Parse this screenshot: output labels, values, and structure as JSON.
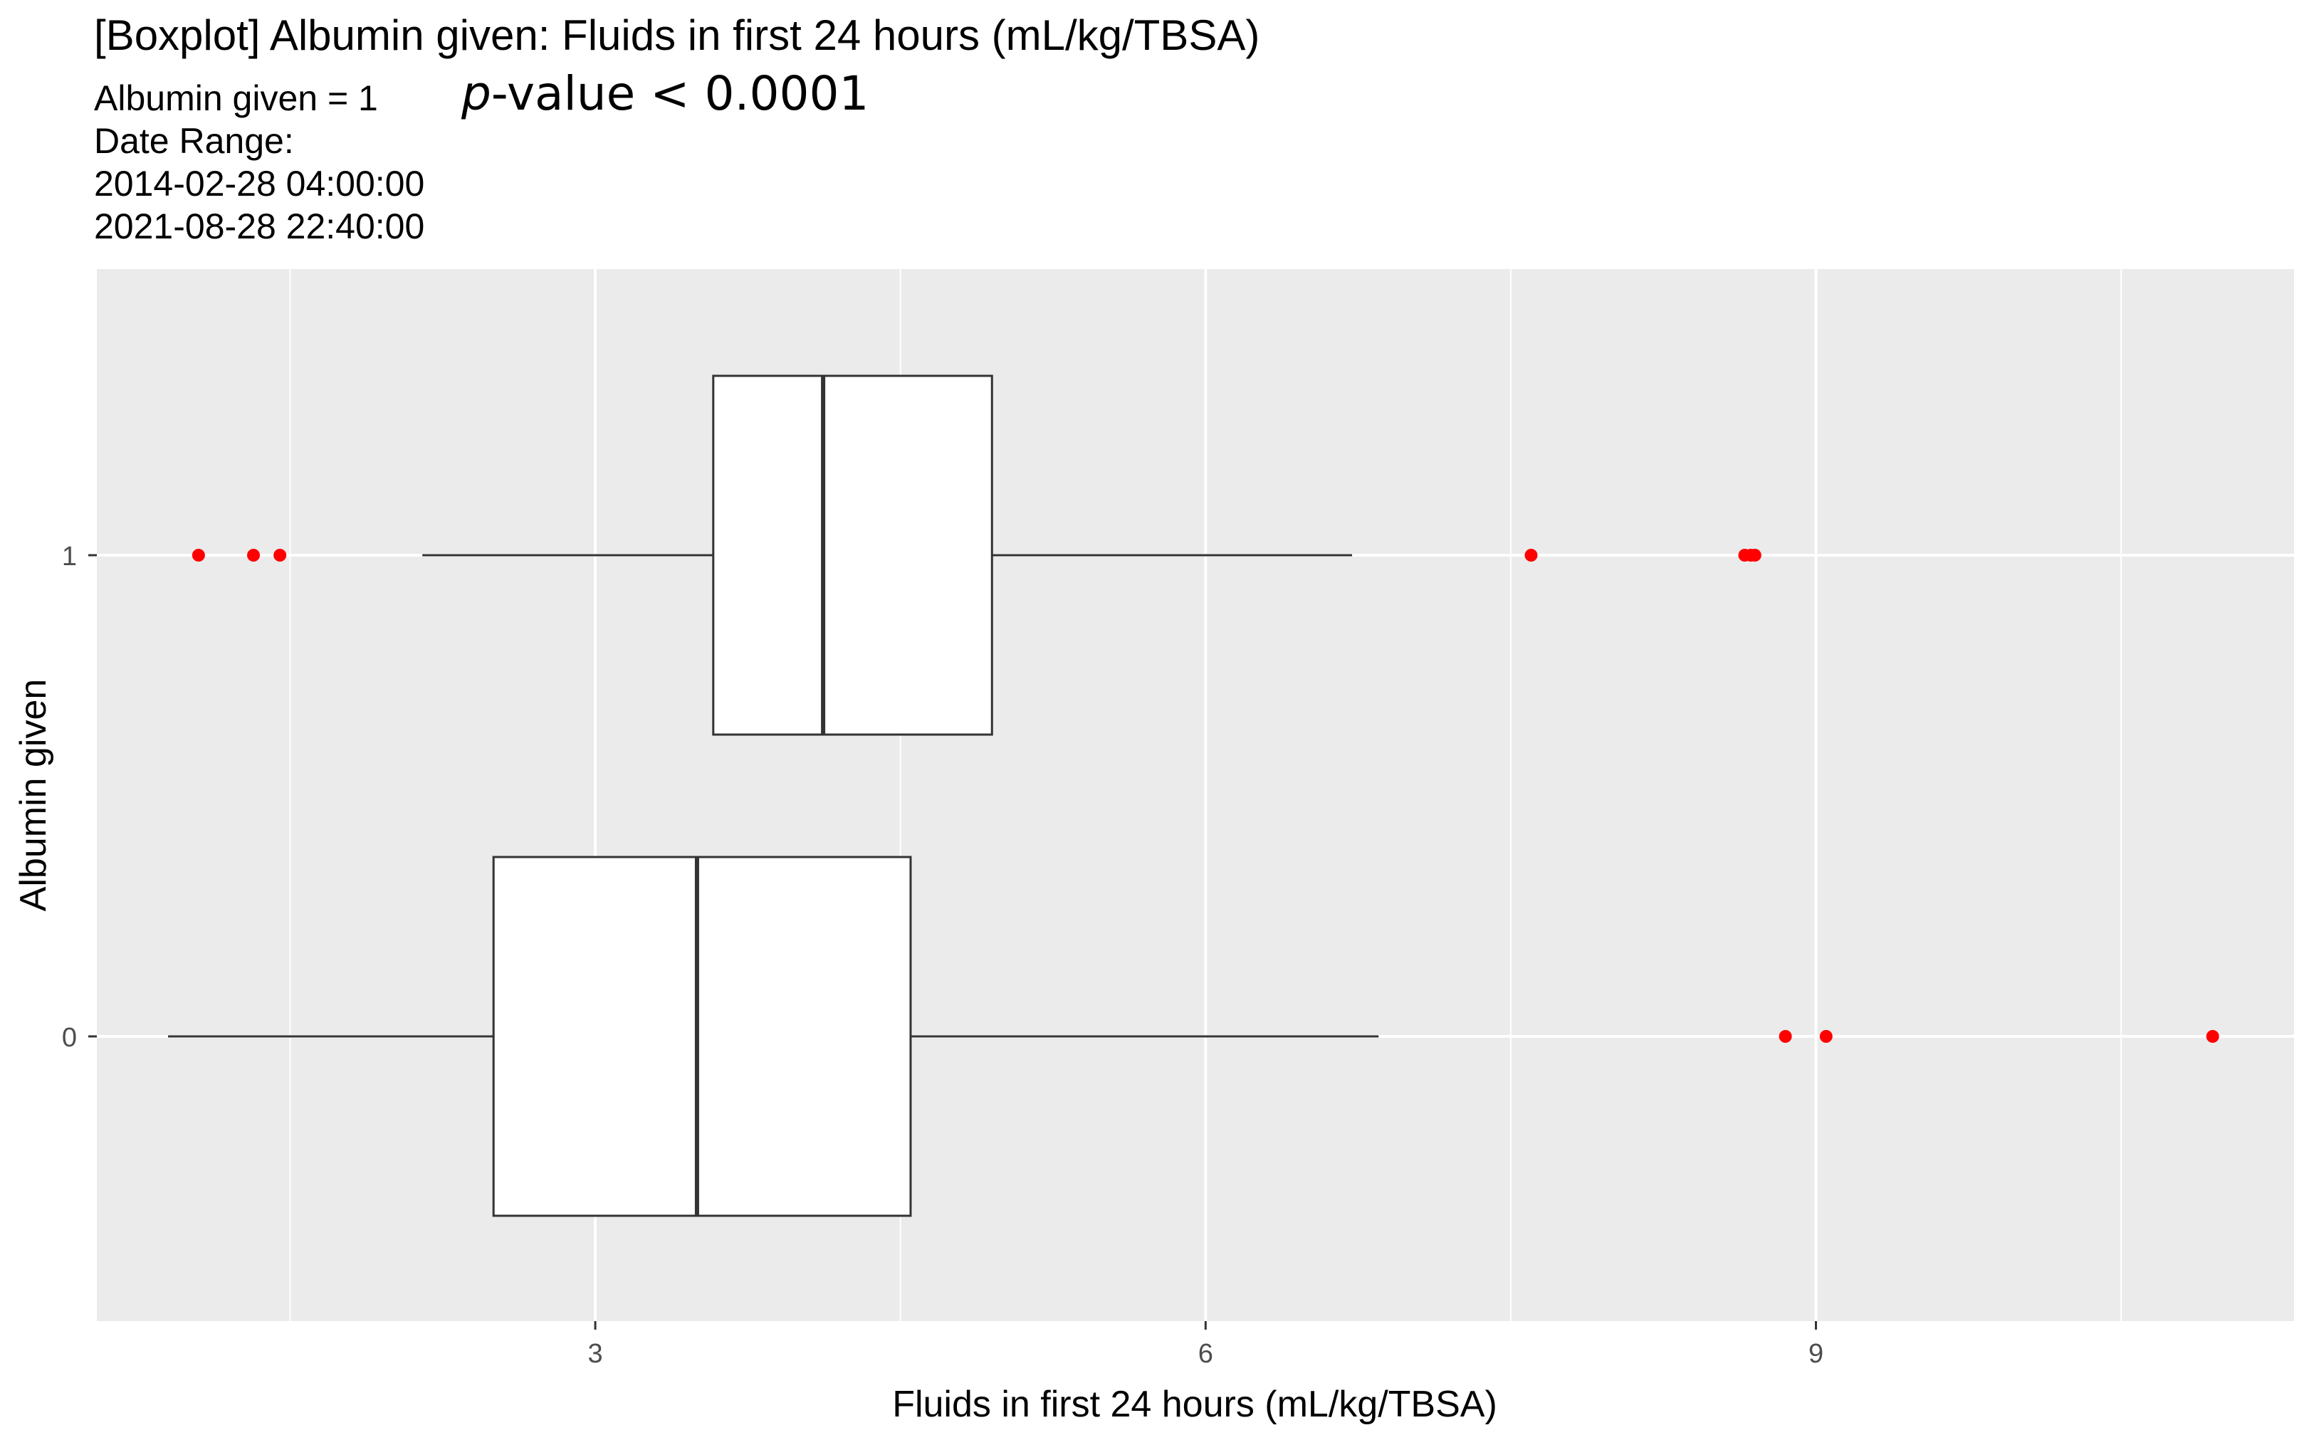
{
  "chart_data": {
    "type": "boxplot",
    "title": "[Boxplot] Albumin given: Fluids in first 24 hours (mL/kg/TBSA)",
    "subtitle": "Albumin given = 1",
    "p_value_prefix": "p",
    "p_value_rest": "-value < 0.0001",
    "date_range_label": "Date Range:",
    "date_range": [
      "2014-02-28 04:00:00",
      "2021-08-28 22:40:00"
    ],
    "xlabel": "Fluids in first 24 hours (mL/kg/TBSA)",
    "ylabel": "Albumin given",
    "xlim": [
      0.55,
      11.35
    ],
    "x_ticks": [
      3,
      6,
      9
    ],
    "x_tick_labels": [
      "3",
      "6",
      "9"
    ],
    "x_minor_ticks": [
      1.5,
      4.5,
      7.5,
      10.5
    ],
    "y_categories": [
      "0",
      "1"
    ],
    "grid": true,
    "outlier_color": "#ff0000",
    "panel_color": "#ebebeb",
    "box_fill": "#ffffff",
    "series": [
      {
        "category": "0",
        "whisker_low": 0.9,
        "q1": 2.5,
        "median": 3.5,
        "q3": 4.55,
        "whisker_high": 6.85,
        "outliers": [
          8.85,
          9.05,
          10.95
        ]
      },
      {
        "category": "1",
        "whisker_low": 2.15,
        "q1": 3.58,
        "median": 4.12,
        "q3": 4.95,
        "whisker_high": 6.72,
        "outliers": [
          1.05,
          1.32,
          1.45,
          7.6,
          8.65,
          8.68,
          8.7
        ]
      }
    ]
  }
}
